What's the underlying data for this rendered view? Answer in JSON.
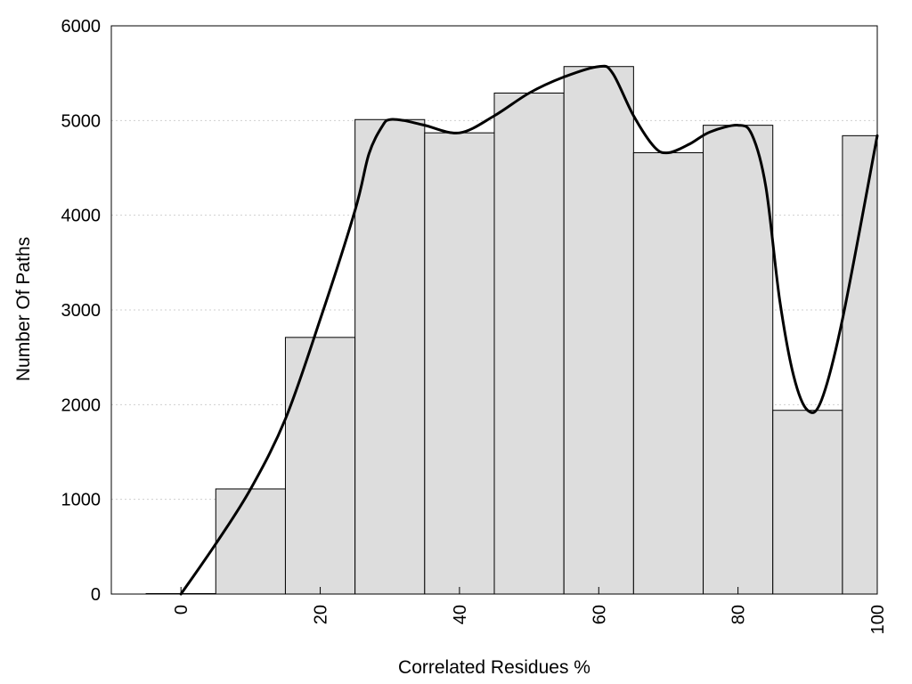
{
  "chart_data": {
    "type": "bar",
    "title": "",
    "xlabel": "Correlated Residues %",
    "ylabel": "Number Of Paths",
    "xlim": [
      -10,
      100
    ],
    "ylim": [
      0,
      6000
    ],
    "bin_width": 10,
    "x": [
      0,
      10,
      20,
      30,
      40,
      50,
      60,
      70,
      80,
      90,
      100
    ],
    "values": [
      5,
      1110,
      2710,
      5010,
      4870,
      5290,
      5570,
      4660,
      4950,
      1940,
      4840
    ],
    "x_ticks": [
      "0",
      "20",
      "40",
      "60",
      "80",
      "100"
    ],
    "y_ticks": [
      "0",
      "1000",
      "2000",
      "3000",
      "4000",
      "5000",
      "6000"
    ],
    "grid": {
      "y": true,
      "x": false
    },
    "series": [
      {
        "type": "line",
        "x": [
          0,
          5,
          10,
          15,
          20,
          25,
          27,
          29,
          30,
          32,
          35,
          40,
          45,
          50,
          55,
          60,
          62,
          65,
          68,
          70,
          73,
          76,
          80,
          82,
          84,
          86,
          88,
          90,
          92,
          95,
          100
        ],
        "values": [
          0,
          530,
          1110,
          1850,
          2900,
          4050,
          4650,
          4950,
          5010,
          5000,
          4950,
          4870,
          5050,
          5290,
          5460,
          5570,
          5500,
          5050,
          4720,
          4660,
          4750,
          4880,
          4950,
          4850,
          4300,
          3100,
          2300,
          1940,
          2050,
          2900,
          4840
        ]
      }
    ]
  }
}
